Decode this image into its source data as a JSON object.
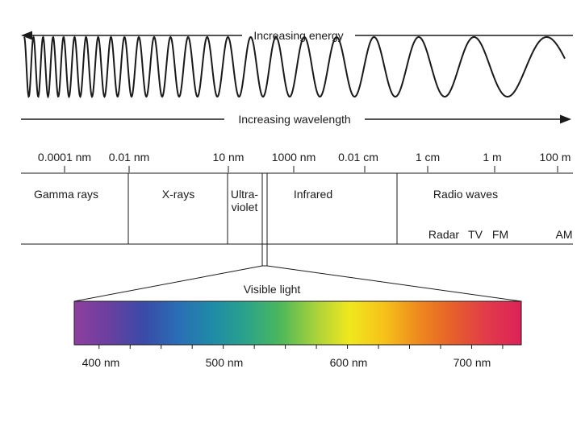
{
  "arrows": {
    "energy_label": "Increasing energy",
    "wavelength_label": "Increasing wavelength"
  },
  "scale": {
    "ticks": [
      "0.0001 nm",
      "0.01 nm",
      "10 nm",
      "1000 nm",
      "0.01 cm",
      "1 cm",
      "1 m",
      "100 m"
    ]
  },
  "bands": {
    "gamma": "Gamma rays",
    "xray": "X-rays",
    "uv_line1": "Ultra-",
    "uv_line2": "violet",
    "infrared": "Infrared",
    "radio": "Radio waves"
  },
  "radio_subbands": [
    "Radar",
    "TV",
    "FM",
    "AM"
  ],
  "visible": {
    "label": "Visible light",
    "ticks": [
      "400 nm",
      "500 nm",
      "600 nm",
      "700 nm"
    ],
    "range_nm": [
      380,
      740
    ],
    "gradient_colors": [
      "#8e3f9e",
      "#6a3fa0",
      "#3a4aa8",
      "#2a6db5",
      "#1f8aa8",
      "#2aa38a",
      "#4cb85a",
      "#a6d23a",
      "#f0e81e",
      "#f6c21a",
      "#ee8a1e",
      "#e6602a",
      "#e23a4a",
      "#dc2257"
    ]
  }
}
